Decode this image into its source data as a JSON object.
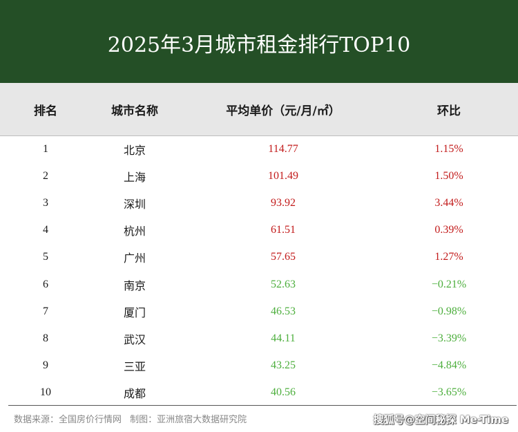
{
  "title": "2025年3月城市租金排行TOP10",
  "header": {
    "rank": "排名",
    "city": "城市名称",
    "price": "平均单价（元/月/㎡）",
    "change": "环比"
  },
  "colors": {
    "title_bg": "#244f26",
    "header_bg": "#e7e7e7",
    "up": "#c21a1a",
    "down": "#4cae3c"
  },
  "rows": [
    {
      "rank": "1",
      "city": "北京",
      "price": "114.77",
      "change": "1.15%",
      "trend": "up"
    },
    {
      "rank": "2",
      "city": "上海",
      "price": "101.49",
      "change": "1.50%",
      "trend": "up"
    },
    {
      "rank": "3",
      "city": "深圳",
      "price": "93.92",
      "change": "3.44%",
      "trend": "up"
    },
    {
      "rank": "4",
      "city": "杭州",
      "price": "61.51",
      "change": "0.39%",
      "trend": "up"
    },
    {
      "rank": "5",
      "city": "广州",
      "price": "57.65",
      "change": "1.27%",
      "trend": "up"
    },
    {
      "rank": "6",
      "city": "南京",
      "price": "52.63",
      "change": "−0.21%",
      "trend": "down"
    },
    {
      "rank": "7",
      "city": "厦门",
      "price": "46.53",
      "change": "−0.98%",
      "trend": "down"
    },
    {
      "rank": "8",
      "city": "武汉",
      "price": "44.11",
      "change": "−3.39%",
      "trend": "down"
    },
    {
      "rank": "9",
      "city": "三亚",
      "price": "43.25",
      "change": "−4.84%",
      "trend": "down"
    },
    {
      "rank": "10",
      "city": "成都",
      "price": "40.56",
      "change": "−3.65%",
      "trend": "down"
    }
  ],
  "footer": {
    "source": "数据来源：全国房价行情网",
    "maker": "制图：亚洲旅宿大数据研究院",
    "watermark": "搜狐号@空间秘探 Me-Time"
  }
}
